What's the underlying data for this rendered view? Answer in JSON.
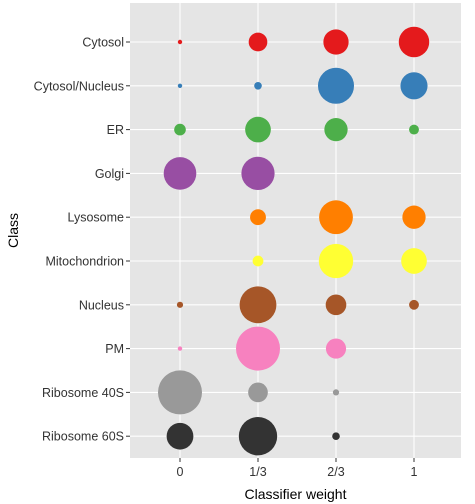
{
  "chart_data": {
    "type": "scatter",
    "title": "",
    "xlabel": "Classifier weight",
    "ylabel": "Class",
    "x_categories": [
      "0",
      "1/3",
      "2/3",
      "1"
    ],
    "y_categories": [
      "Cytosol",
      "Cytosol/Nucleus",
      "ER",
      "Golgi",
      "Lysosome",
      "Mitochondrion",
      "Nucleus",
      "PM",
      "Ribosome 40S",
      "Ribosome 60S"
    ],
    "size_scale_max": 0.68,
    "grid": true,
    "panel_background": "#e5e5e5",
    "grid_color": "#ffffff",
    "series": [
      {
        "class": "Cytosol",
        "color": "#e41a1c",
        "values": [
          0.01,
          0.18,
          0.33,
          0.48
        ]
      },
      {
        "class": "Cytosol/Nucleus",
        "color": "#377eb8",
        "values": [
          0.01,
          0.03,
          0.67,
          0.38
        ]
      },
      {
        "class": "ER",
        "color": "#4daf4a",
        "values": [
          0.07,
          0.34,
          0.28,
          0.05
        ]
      },
      {
        "class": "Golgi",
        "color": "#984ea3",
        "values": [
          0.55,
          0.57,
          0.0,
          0.0
        ]
      },
      {
        "class": "Lysosome",
        "color": "#ff7f00",
        "values": [
          0.0,
          0.13,
          0.59,
          0.28
        ]
      },
      {
        "class": "Mitochondrion",
        "color": "#ffff33",
        "values": [
          0.0,
          0.06,
          0.61,
          0.34
        ]
      },
      {
        "class": "Nucleus",
        "color": "#a65628",
        "values": [
          0.02,
          0.7,
          0.22,
          0.05
        ]
      },
      {
        "class": "PM",
        "color": "#f781bf",
        "values": [
          0.01,
          1.0,
          0.21,
          0.0
        ]
      },
      {
        "class": "Ribosome 40S",
        "color": "#999999",
        "values": [
          1.0,
          0.2,
          0.02,
          0.0
        ]
      },
      {
        "class": "Ribosome 60S",
        "color": "#333333",
        "values": [
          0.37,
          0.76,
          0.03,
          0.0
        ]
      }
    ]
  }
}
